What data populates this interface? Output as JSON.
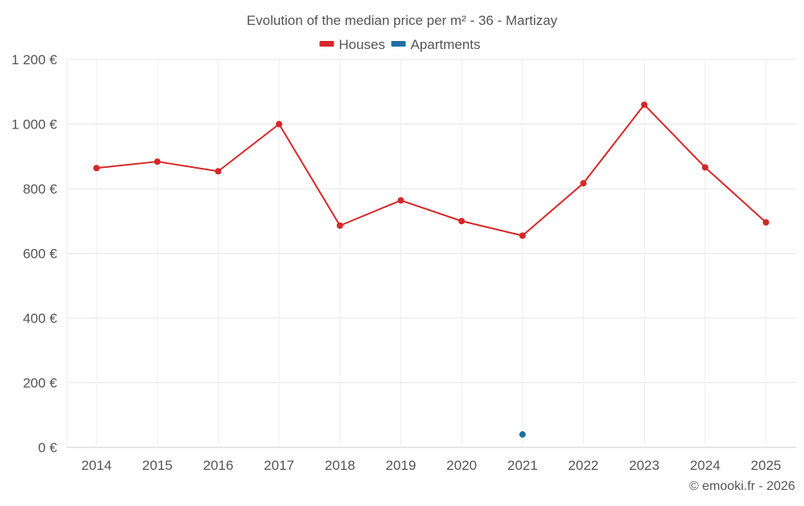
{
  "chart_data": {
    "type": "line",
    "title": "Evolution of the median price per m² - 36 - Martizay",
    "categories": [
      "2014",
      "2015",
      "2016",
      "2017",
      "2018",
      "2019",
      "2020",
      "2021",
      "2022",
      "2023",
      "2024",
      "2025"
    ],
    "ylim": [
      0,
      1200
    ],
    "yticks": [
      0,
      200,
      400,
      600,
      800,
      1000,
      1200
    ],
    "ytick_labels": [
      "0 €",
      "200 €",
      "400 €",
      "600 €",
      "800 €",
      "1 000 €",
      "1 200 €"
    ],
    "grid": true,
    "legend_position": "top-center",
    "series": [
      {
        "name": "Houses",
        "color": "#d62728",
        "values": [
          864,
          884,
          854,
          1000,
          686,
          764,
          700,
          655,
          817,
          1060,
          866,
          696
        ]
      },
      {
        "name": "Apartments",
        "color": "#1f6fa3",
        "values": [
          null,
          null,
          null,
          null,
          null,
          null,
          null,
          40,
          null,
          null,
          null,
          null
        ]
      }
    ],
    "credit": "© emooki.fr - 2026"
  }
}
